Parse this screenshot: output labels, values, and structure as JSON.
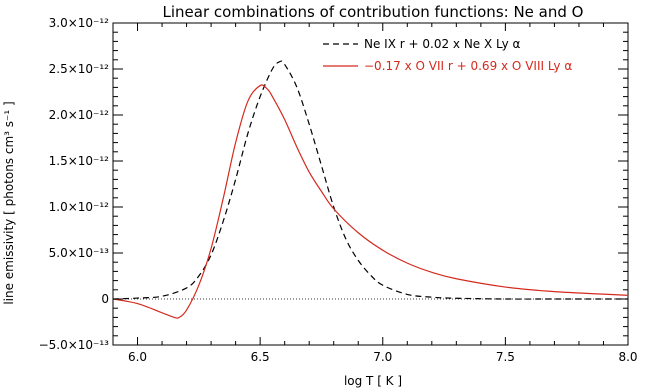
{
  "chart_data": {
    "type": "line",
    "title": "Linear combinations of contribution functions: Ne and O",
    "xlabel": "log T [ K ]",
    "ylabel": "line emissivity [ photons cm³ s⁻¹ ]",
    "xlim": [
      5.9,
      8.0
    ],
    "ylim": [
      -5e-13,
      3e-12
    ],
    "x_ticks": [
      {
        "value": 6.0,
        "label": "6.0"
      },
      {
        "value": 6.5,
        "label": "6.5"
      },
      {
        "value": 7.0,
        "label": "7.0"
      },
      {
        "value": 7.5,
        "label": "7.5"
      },
      {
        "value": 8.0,
        "label": "8.0"
      }
    ],
    "y_ticks": [
      {
        "value": -5e-13,
        "label": "−5.0×10⁻¹³"
      },
      {
        "value": 0,
        "label": "0"
      },
      {
        "value": 5e-13,
        "label": "5.0×10⁻¹³"
      },
      {
        "value": 1e-12,
        "label": "1.0×10⁻¹²"
      },
      {
        "value": 1.5e-12,
        "label": "1.5×10⁻¹²"
      },
      {
        "value": 2e-12,
        "label": "2.0×10⁻¹²"
      },
      {
        "value": 2.5e-12,
        "label": "2.5×10⁻¹²"
      },
      {
        "value": 3e-12,
        "label": "3.0×10⁻¹²"
      }
    ],
    "grid": false,
    "legend_position": "top-right",
    "series": [
      {
        "name": "Ne IX r + 0.02 x Ne X Ly α",
        "color": "#000000",
        "style": "dashed",
        "x": [
          5.9,
          6.0,
          6.1,
          6.2,
          6.25,
          6.3,
          6.35,
          6.4,
          6.45,
          6.5,
          6.55,
          6.58,
          6.6,
          6.65,
          6.7,
          6.75,
          6.8,
          6.85,
          6.9,
          6.95,
          7.0,
          7.1,
          7.2,
          7.3,
          7.5,
          7.7,
          8.0
        ],
        "y": [
          0,
          1e-14,
          3e-14,
          1.2e-13,
          2.5e-13,
          4.8e-13,
          8.5e-13,
          1.3e-12,
          1.8e-12,
          2.2e-12,
          2.5e-12,
          2.58e-12,
          2.55e-12,
          2.3e-12,
          1.9e-12,
          1.45e-12,
          1e-12,
          6.5e-13,
          4.2e-13,
          2.6e-13,
          1.5e-13,
          5e-14,
          2e-14,
          8e-15,
          0,
          0,
          0
        ]
      },
      {
        "name": "−0.17 x O VII r + 0.69 x O VIII Ly α",
        "color": "#d42a1e",
        "style": "solid",
        "x": [
          5.9,
          6.0,
          6.1,
          6.15,
          6.17,
          6.2,
          6.25,
          6.3,
          6.35,
          6.4,
          6.45,
          6.5,
          6.53,
          6.55,
          6.6,
          6.65,
          6.7,
          6.75,
          6.8,
          6.9,
          7.0,
          7.1,
          7.2,
          7.3,
          7.5,
          7.7,
          8.0
        ],
        "y": [
          0,
          -5e-14,
          -1.5e-13,
          -2e-13,
          -2e-13,
          -1.2e-13,
          1.5e-13,
          5.5e-13,
          1.1e-12,
          1.7e-12,
          2.15e-12,
          2.32e-12,
          2.28e-12,
          2.2e-12,
          1.95e-12,
          1.65e-12,
          1.38e-12,
          1.17e-12,
          9.8e-13,
          7.2e-13,
          5.3e-13,
          3.9e-13,
          2.9e-13,
          2.2e-13,
          1.3e-13,
          8e-14,
          4e-14
        ]
      }
    ]
  }
}
